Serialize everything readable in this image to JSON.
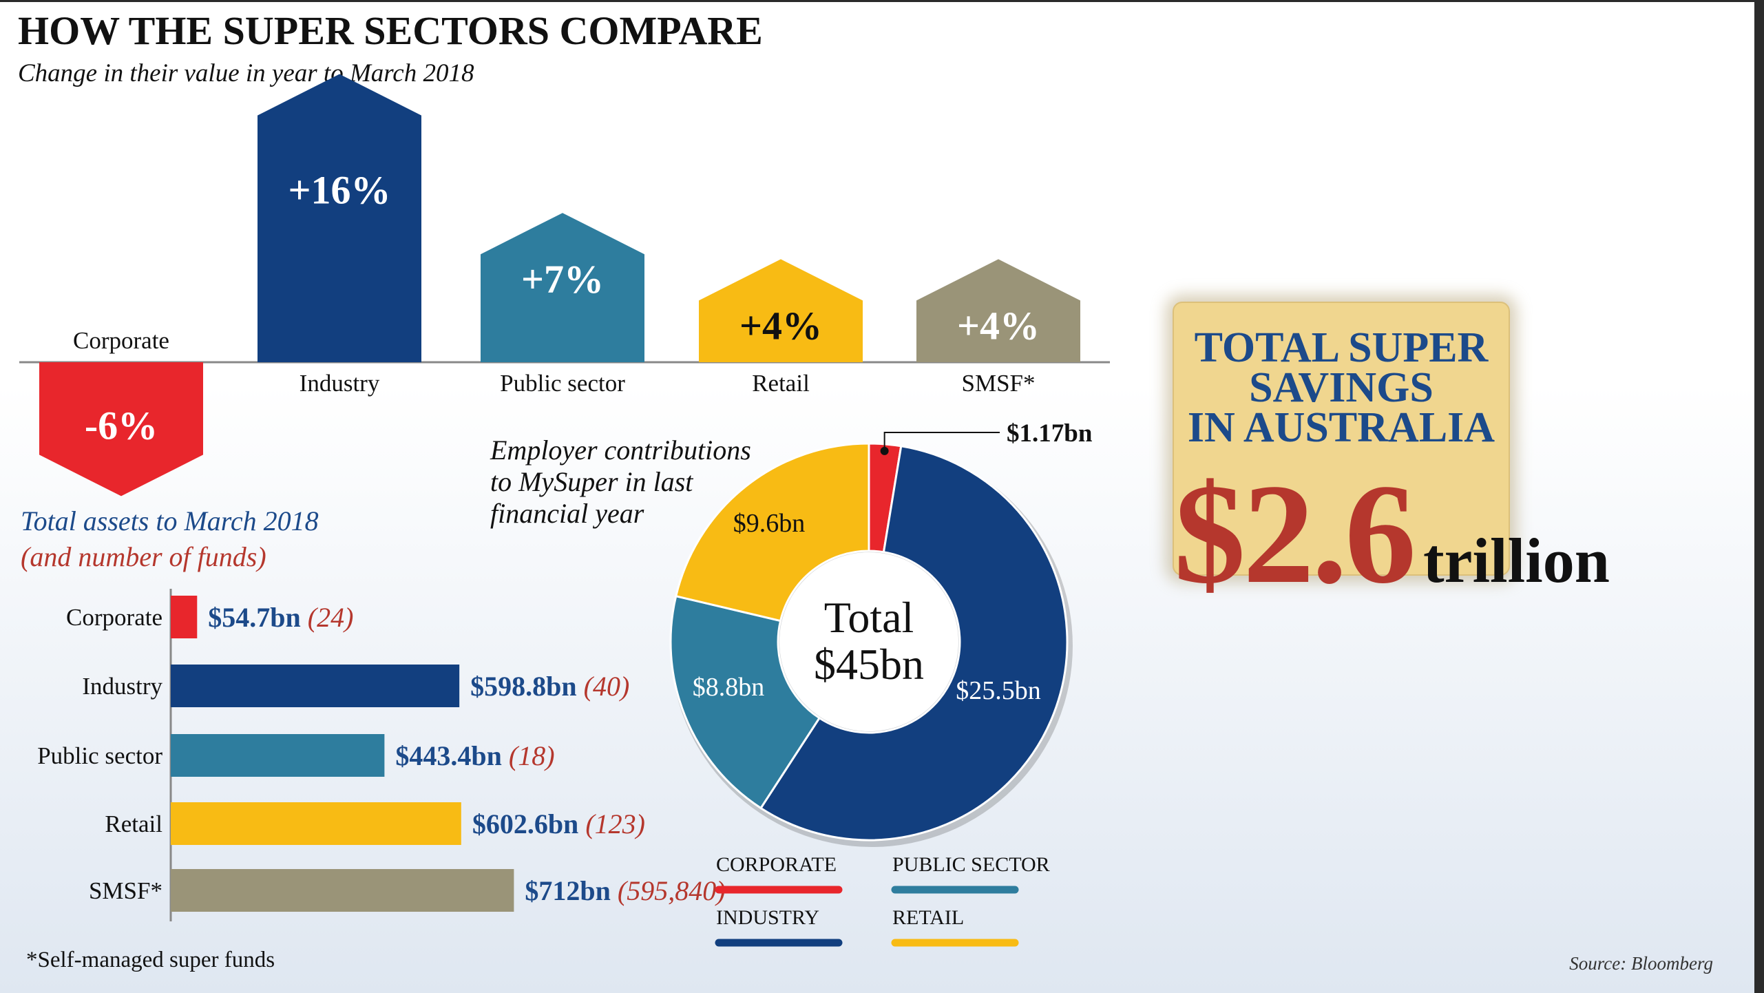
{
  "title": "HOW THE SUPER SECTORS COMPARE",
  "subtitle": "Change in their value in year to March 2018",
  "footnote": "*Self-managed super funds",
  "source": "Source: Bloomberg",
  "colors": {
    "corporate": "#e8262c",
    "industry": "#123f7f",
    "public_sector": "#2e7d9e",
    "retail": "#f8bb14",
    "smsf": "#9a9478",
    "navy_text": "#1c4a8a",
    "red_text": "#b5372d"
  },
  "chart_data": [
    {
      "type": "bar",
      "title": "",
      "categories": [
        "Corporate",
        "Industry",
        "Public sector",
        "Retail",
        "SMSF*"
      ],
      "values": [
        -6,
        16,
        7,
        4,
        4
      ],
      "value_labels": [
        "-6%",
        "+16%",
        "+7%",
        "+4%",
        "+4%"
      ],
      "unit": "%"
    },
    {
      "type": "bar",
      "orientation": "horizontal",
      "title": "Total assets to March 2018",
      "title_line2": "(and number of funds)",
      "categories": [
        "Corporate",
        "Industry",
        "Public sector",
        "Retail",
        "SMSF*"
      ],
      "values": [
        54.7,
        598.8,
        443.4,
        602.6,
        712
      ],
      "value_labels": [
        "$54.7bn",
        "$598.8bn",
        "$443.4bn",
        "$602.6bn",
        "$712bn"
      ],
      "fund_counts": [
        24,
        40,
        18,
        123,
        595840
      ],
      "fund_count_labels": [
        "(24)",
        "(40)",
        "(18)",
        "(123)",
        "(595,840)"
      ],
      "unit": "$bn"
    },
    {
      "type": "pie",
      "title": "Employer contributions to MySuper in last financial year",
      "title_lines": [
        "Employer contributions",
        "to MySuper in last",
        "financial year"
      ],
      "center_label_lines": [
        "Total",
        "$45bn"
      ],
      "slices": [
        {
          "name": "CORPORATE",
          "value": 1.17,
          "label": "$1.17bn"
        },
        {
          "name": "INDUSTRY",
          "value": 25.5,
          "label": "$25.5bn"
        },
        {
          "name": "PUBLIC SECTOR",
          "value": 8.8,
          "label": "$8.8bn"
        },
        {
          "name": "RETAIL",
          "value": 9.6,
          "label": "$9.6bn"
        }
      ],
      "legend": [
        "CORPORATE",
        "PUBLIC SECTOR",
        "INDUSTRY",
        "RETAIL"
      ]
    }
  ],
  "savings": {
    "title_line1": "TOTAL SUPER SAVINGS",
    "title_line2": "IN AUSTRALIA",
    "value": "$2.6",
    "unit": "trillion"
  }
}
